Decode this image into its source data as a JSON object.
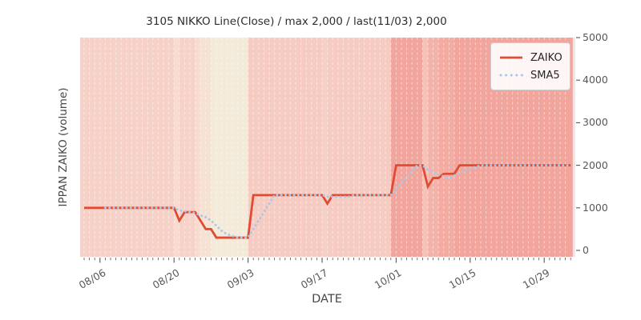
{
  "title": "3105 NIKKO Line(Close) / max 2,000 / last(11/03) 2,000",
  "xlabel": "DATE",
  "ylabel": "IPPAN ZAIKO (volume)",
  "legend": {
    "position": "upper right",
    "items": [
      {
        "label": "ZAIKO",
        "color": "#e14b31",
        "style": "solid"
      },
      {
        "label": "SMA5",
        "color": "#a9c7e6",
        "style": "dotted"
      }
    ]
  },
  "y_ticks": [
    "0",
    "1000",
    "2000",
    "3000",
    "4000",
    "5000"
  ],
  "x_ticks": [
    "08/06",
    "08/20",
    "09/03",
    "09/17",
    "10/01",
    "10/15",
    "10/29"
  ],
  "colors": {
    "zaiko_line": "#e14b31",
    "sma5_line": "#a9c7e6",
    "axes_background": "#e9e9e9",
    "grid_dash": "rgba(255,255,255,0.55)",
    "tick_color": "#555555",
    "band_stops": [
      [
        0,
        "#f5eee1"
      ],
      [
        300,
        "#f3ead9"
      ],
      [
        500,
        "#f5e2d2"
      ],
      [
        700,
        "#f8dcd2"
      ],
      [
        900,
        "#f6d2c9"
      ],
      [
        1100,
        "#f6cfc6"
      ],
      [
        1300,
        "#f6ccc2"
      ],
      [
        1500,
        "#f5c2b9"
      ],
      [
        1700,
        "#f4b3aa"
      ],
      [
        1800,
        "#f3aba2"
      ],
      [
        2000,
        "#f2a59c"
      ]
    ]
  },
  "chart_data": {
    "type": "line",
    "x_start_date": "08/03",
    "x_end_date": "11/03",
    "ylim": [
      0,
      5000
    ],
    "y_tick_step": 1000,
    "x_tick_interval_days": 14,
    "grid": "vertical white dashed lines per day over value-shaded daily background bands",
    "max_value": 2000,
    "last_date": "11/03",
    "last_value": 2000,
    "dates": [
      "08/03",
      "08/04",
      "08/05",
      "08/06",
      "08/07",
      "08/08",
      "08/09",
      "08/10",
      "08/11",
      "08/12",
      "08/13",
      "08/14",
      "08/15",
      "08/16",
      "08/17",
      "08/18",
      "08/19",
      "08/20",
      "08/21",
      "08/22",
      "08/23",
      "08/24",
      "08/25",
      "08/26",
      "08/27",
      "08/28",
      "08/29",
      "08/30",
      "08/31",
      "09/01",
      "09/02",
      "09/03",
      "09/04",
      "09/05",
      "09/06",
      "09/07",
      "09/08",
      "09/09",
      "09/10",
      "09/11",
      "09/12",
      "09/13",
      "09/14",
      "09/15",
      "09/16",
      "09/17",
      "09/18",
      "09/19",
      "09/20",
      "09/21",
      "09/22",
      "09/23",
      "09/24",
      "09/25",
      "09/26",
      "09/27",
      "09/28",
      "09/29",
      "09/30",
      "10/01",
      "10/02",
      "10/03",
      "10/04",
      "10/05",
      "10/06",
      "10/07",
      "10/08",
      "10/09",
      "10/10",
      "10/11",
      "10/12",
      "10/13",
      "10/14",
      "10/15",
      "10/16",
      "10/17",
      "10/18",
      "10/19",
      "10/20",
      "10/21",
      "10/22",
      "10/23",
      "10/24",
      "10/25",
      "10/26",
      "10/27",
      "10/28",
      "10/29",
      "10/30",
      "10/31",
      "11/01",
      "11/02",
      "11/03"
    ],
    "series": [
      {
        "name": "ZAIKO",
        "values": [
          1000,
          1000,
          1000,
          1000,
          1000,
          1000,
          1000,
          1000,
          1000,
          1000,
          1000,
          1000,
          1000,
          1000,
          1000,
          1000,
          1000,
          1000,
          700,
          900,
          900,
          900,
          700,
          500,
          500,
          300,
          300,
          300,
          300,
          300,
          300,
          300,
          1300,
          1300,
          1300,
          1300,
          1300,
          1300,
          1300,
          1300,
          1300,
          1300,
          1300,
          1300,
          1300,
          1300,
          1100,
          1300,
          1300,
          1300,
          1300,
          1300,
          1300,
          1300,
          1300,
          1300,
          1300,
          1300,
          1300,
          2000,
          2000,
          2000,
          2000,
          2000,
          2000,
          1500,
          1700,
          1700,
          1800,
          1800,
          1800,
          2000,
          2000,
          2000,
          2000,
          2000,
          2000,
          2000,
          2000,
          2000,
          2000,
          2000,
          2000,
          2000,
          2000,
          2000,
          2000,
          2000,
          2000,
          2000,
          2000,
          2000,
          2000
        ]
      },
      {
        "name": "SMA5",
        "derived": "5-day moving average of ZAIKO"
      }
    ]
  }
}
